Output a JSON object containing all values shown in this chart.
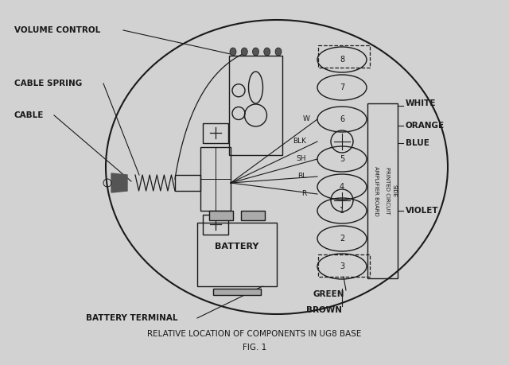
{
  "bg_color": "#c8c8c8",
  "paper_color": "#d0d0d0",
  "line_color": "#1a1a1a",
  "title": "RELATIVE LOCATION OF COMPONENTS IN UG8 BASE",
  "subtitle": "FIG. 1",
  "labels": {
    "volume_control": "VOLUME CONTROL",
    "cable_spring": "CABLE SPRING",
    "cable": "CABLE",
    "battery_terminal": "BATTERY TERMINAL",
    "battery": "BATTERY",
    "white": "WHITE",
    "orange": "ORANGE",
    "blue": "BLUE",
    "violet": "VIOLET",
    "green": "GREEN",
    "brown": "BROWN",
    "amplifier_board": "AMPLIFIER BOARD",
    "printed_circuit": "PRINTED CIRCUIT",
    "side": "SIDE",
    "W": "W",
    "BLK": "BLK",
    "SH": "SH",
    "BL": "BL",
    "R": "R"
  }
}
